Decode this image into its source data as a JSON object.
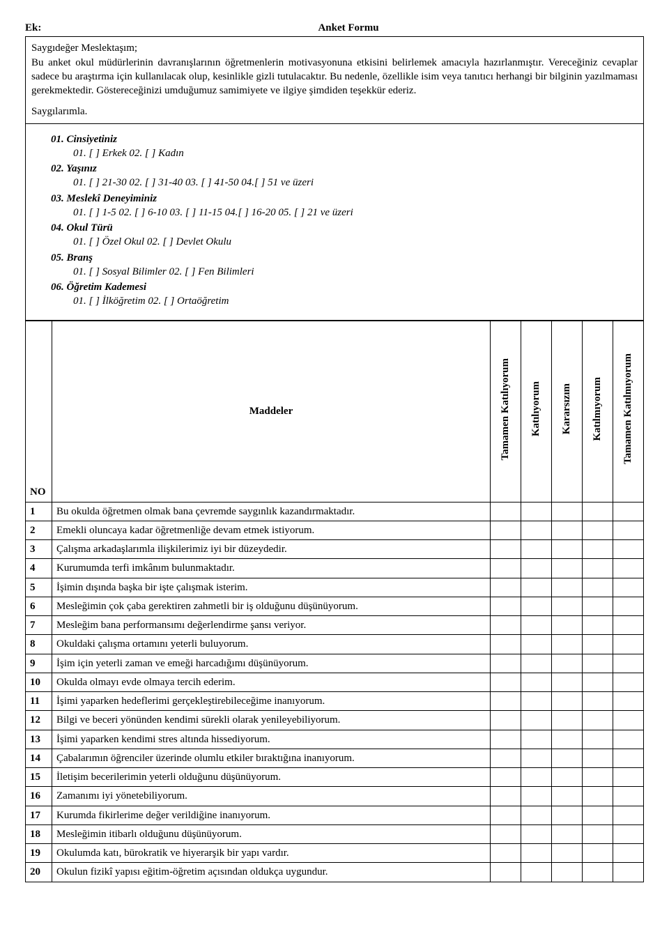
{
  "header": {
    "ek_label": "Ek:",
    "form_title": "Anket Formu"
  },
  "intro": {
    "greeting": "Saygıdeğer Meslektaşım;",
    "p1": "Bu anket okul müdürlerinin davranışlarının öğretmenlerin motivasyonuna etkisini belirlemek amacıyla hazırlanmıştır. Vereceğiniz cevaplar sadece bu araştırma için kullanılacak olup, kesinlikle gizli tutulacaktır. Bu nedenle, özellikle isim veya tanıtıcı herhangi bir bilginin yazılmaması gerekmektedir. Göstereceğinizi umduğumuz samimiyete ve ilgiye şimdiden teşekkür ederiz.",
    "closing": "Saygılarımla."
  },
  "demographics": {
    "q1": {
      "head": "01.   Cinsiyetiniz",
      "opts": "01.   [ ] Erkek  02. [ ] Kadın"
    },
    "q2": {
      "head": "02.  Yaşınız",
      "opts": "01. [ ] 21-30    02. [ ] 31-40    03. [ ] 41-50    04.[ ] 51 ve üzeri"
    },
    "q3": {
      "head": "03. Meslekî Deneyiminiz",
      "opts": "01. [ ] 1-5    02. [ ] 6-10    03. [ ] 11-15    04.[ ] 16-20    05. [ ] 21 ve üzeri"
    },
    "q4": {
      "head": "04. Okul Türü",
      "opts": "01. [ ] Özel Okul    02. [ ] Devlet Okulu"
    },
    "q5": {
      "head": "05. Branş",
      "opts": "01. [ ] Sosyal Bilimler    02. [ ] Fen Bilimleri"
    },
    "q6": {
      "head": "06. Öğretim Kademesi",
      "opts": "01. [ ] İlköğretim    02. [ ] Ortaöğretim"
    }
  },
  "table": {
    "columns": {
      "no": "NO",
      "maddeler": "Maddeler",
      "ratings": [
        "Tamamen Katılıyorum",
        "Katılıyorum",
        "Kararsızım",
        "Katılmıyorum",
        "Tamamen Katılmıyorum"
      ]
    },
    "rows": [
      {
        "no": "1",
        "text": "Bu okulda öğretmen olmak bana çevremde saygınlık kazandırmaktadır."
      },
      {
        "no": "2",
        "text": "Emekli oluncaya kadar öğretmenliğe devam etmek istiyorum."
      },
      {
        "no": "3",
        "text": "Çalışma arkadaşlarımla ilişkilerimiz iyi bir düzeydedir."
      },
      {
        "no": "4",
        "text": "Kurumumda terfi imkânım bulunmaktadır."
      },
      {
        "no": "5",
        "text": "İşimin dışında başka bir işte çalışmak isterim."
      },
      {
        "no": "6",
        "text": "Mesleğimin çok çaba gerektiren zahmetli bir iş olduğunu düşünüyorum."
      },
      {
        "no": "7",
        "text": "Mesleğim bana performansımı değerlendirme şansı veriyor."
      },
      {
        "no": "8",
        "text": "Okuldaki çalışma ortamını yeterli buluyorum."
      },
      {
        "no": "9",
        "text": "İşim için yeterli zaman ve emeği harcadığımı düşünüyorum."
      },
      {
        "no": "10",
        "text": "Okulda olmayı evde olmaya tercih ederim."
      },
      {
        "no": "11",
        "text": "İşimi yaparken hedeflerimi gerçekleştirebileceğime inanıyorum."
      },
      {
        "no": "12",
        "text": "Bilgi ve beceri yönünden kendimi sürekli olarak yenileyebiliyorum."
      },
      {
        "no": "13",
        "text": "İşimi yaparken kendimi stres altında hissediyorum."
      },
      {
        "no": "14",
        "text": "Çabalarımın öğrenciler üzerinde olumlu etkiler bıraktığına inanıyorum."
      },
      {
        "no": "15",
        "text": "İletişim becerilerimin yeterli olduğunu düşünüyorum."
      },
      {
        "no": "16",
        "text": "Zamanımı iyi yönetebiliyorum."
      },
      {
        "no": "17",
        "text": "Kurumda fikirlerime değer verildiğine inanıyorum."
      },
      {
        "no": "18",
        "text": "Mesleğimin itibarlı olduğunu düşünüyorum."
      },
      {
        "no": "19",
        "text": "Okulumda katı, bürokratik ve hiyerarşik bir yapı vardır."
      },
      {
        "no": "20",
        "text": "Okulun fizikî yapısı eğitim-öğretim açısından oldukça uygundur."
      }
    ]
  }
}
